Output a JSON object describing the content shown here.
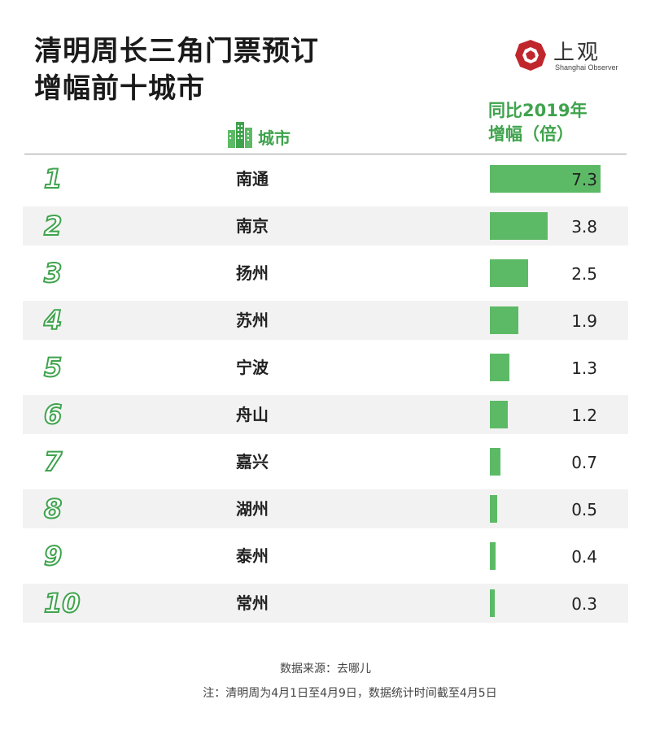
{
  "title": {
    "line1": "清明周长三角门票预订",
    "line2": "增幅前十城市"
  },
  "logo": {
    "cn": "上观",
    "en": "Shanghai Observer"
  },
  "headers": {
    "city": "城市",
    "value_line1": "同比2019年",
    "value_line2": "增幅（倍）"
  },
  "colors": {
    "accent": "#3fa34d",
    "bar": "#5cba66",
    "row_shade": "#f2f2f2",
    "logo_red": "#c0272d"
  },
  "chart_data": {
    "type": "bar",
    "orientation": "horizontal",
    "title": "清明周长三角门票预订增幅前十城市",
    "category_header": "城市",
    "value_header": "同比2019年增幅（倍）",
    "ranks": [
      "1",
      "2",
      "3",
      "4",
      "5",
      "6",
      "7",
      "8",
      "9",
      "10"
    ],
    "categories": [
      "南通",
      "南京",
      "扬州",
      "苏州",
      "宁波",
      "舟山",
      "嘉兴",
      "湖州",
      "泰州",
      "常州"
    ],
    "values": [
      7.3,
      3.8,
      2.5,
      1.9,
      1.3,
      1.2,
      0.7,
      0.5,
      0.4,
      0.3
    ],
    "value_labels": [
      "7.3",
      "3.8",
      "2.5",
      "1.9",
      "1.3",
      "1.2",
      "0.7",
      "0.5",
      "0.4",
      "0.3"
    ],
    "xlim": [
      0,
      7.3
    ],
    "grid": false
  },
  "footer": {
    "source": "数据来源：去哪儿",
    "note": "注：清明周为4月1日至4月9日，数据统计时间截至4月5日"
  }
}
